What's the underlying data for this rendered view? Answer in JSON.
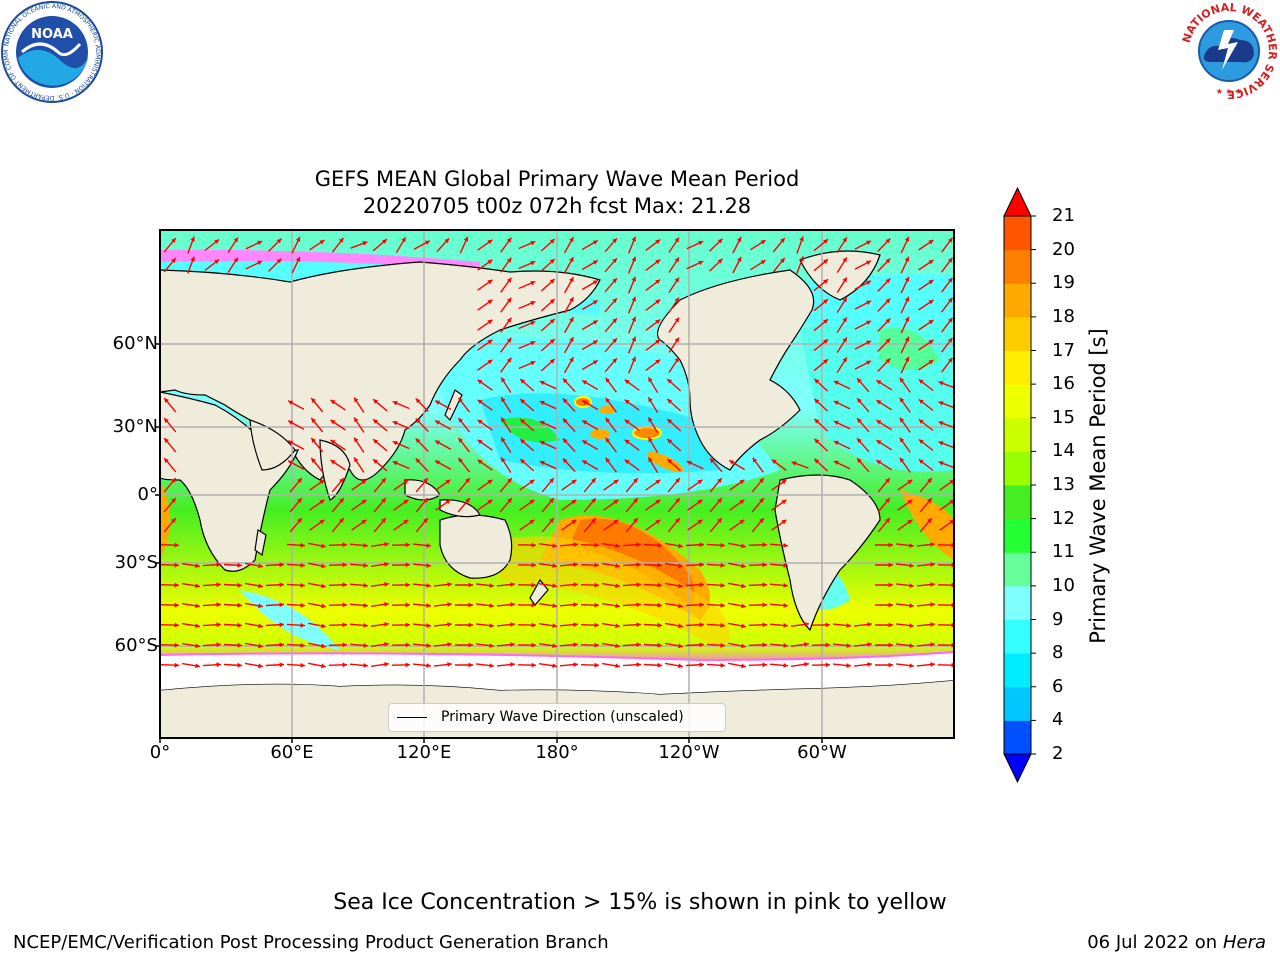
{
  "title_line1": "GEFS MEAN Global Primary Wave Mean Period",
  "title_line2": "20220705 t00z 072h fcst   Max: 21.28",
  "map": {
    "y_ticks": [
      "60°N",
      "30°N",
      "0°",
      "30°S",
      "60°S"
    ],
    "x_ticks": [
      "0°",
      "60°E",
      "120°E",
      "180°",
      "120°W",
      "60°W"
    ],
    "legend_label": "Primary Wave Direction (unscaled)",
    "arrow_color": "#ff0000",
    "land_color": "#efecdc",
    "gridline_color": "#b0b0b0"
  },
  "colorbar": {
    "label": "Primary Wave Mean Period [s]",
    "ticks": [
      "2",
      "4",
      "6",
      "8",
      "9",
      "10",
      "11",
      "12",
      "13",
      "14",
      "15",
      "16",
      "17",
      "18",
      "19",
      "20",
      "21"
    ],
    "colors": [
      "#0050ff",
      "#00c8ff",
      "#00ecff",
      "#33ffff",
      "#80ffff",
      "#66ff99",
      "#22ff33",
      "#44ee22",
      "#99ff00",
      "#ccff00",
      "#eeff00",
      "#ffee00",
      "#ffcc00",
      "#ffaa00",
      "#ff8000",
      "#ff5500",
      "#ff2a00"
    ],
    "under_color": "#0000ff",
    "over_color": "#ff0000"
  },
  "logos": {
    "noaa_text": "NOAA",
    "noaa_ring": "NATIONAL OCEANIC AND ATMOSPHERIC ADMINISTRATION · U.S. DEPARTMENT OF COMMERCE",
    "nws_ring": "NATIONAL WEATHER SERVICE"
  },
  "sea_ice_note": "Sea Ice Concentration > 15% is shown in pink to yellow",
  "footer": {
    "left": "NCEP/EMC/Verification Post Processing Product Generation Branch",
    "date": "06 Jul 2022 on ",
    "machine": "Hera"
  }
}
